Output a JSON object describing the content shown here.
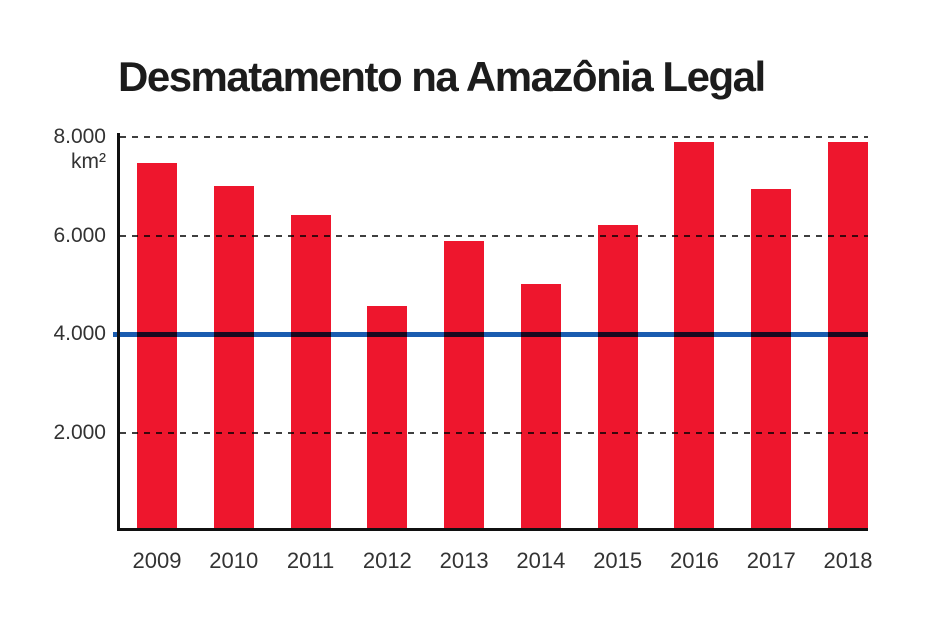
{
  "title": "Desmatamento na Amazônia Legal",
  "colors": {
    "bar": "#ee162d",
    "reference_line": "#1a5cb0",
    "gridline": "#3f3f3f",
    "axis": "#101010",
    "tick_text": "#333333",
    "title_text": "#1c1c1c",
    "background": "#ffffff"
  },
  "chart_data": {
    "type": "bar",
    "title": "Desmatamento na Amazônia Legal",
    "unit_label": "km²",
    "categories": [
      "2009",
      "2010",
      "2011",
      "2012",
      "2013",
      "2014",
      "2015",
      "2016",
      "2017",
      "2018"
    ],
    "values": [
      7464,
      7000,
      6418,
      4571,
      5891,
      5012,
      6207,
      7893,
      6947,
      7900
    ],
    "xlabel": "",
    "ylabel": "km²",
    "ylim": [
      0,
      8000
    ],
    "yticks": [
      {
        "value": 8000,
        "label": "8.000"
      },
      {
        "value": 6000,
        "label": "6.000"
      },
      {
        "value": 4000,
        "label": "4.000"
      },
      {
        "value": 2000,
        "label": "2.000"
      }
    ],
    "grid": "horizontal-dashed",
    "gridline_values": [
      8000,
      6000,
      2000
    ],
    "reference_line": {
      "value": 4000
    },
    "legend": "none",
    "bar_color": "#ee162d"
  }
}
